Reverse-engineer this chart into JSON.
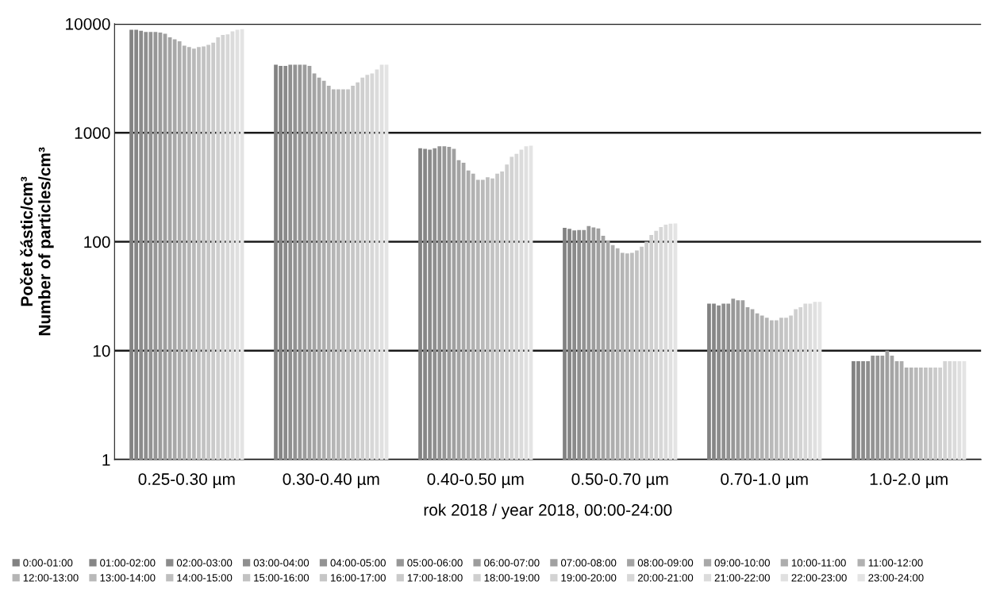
{
  "chart_data": {
    "type": "bar",
    "ylabel": "Počet částic/cm³\nNumber of particles/cm³",
    "xlabel": "rok 2018 / year 2018, 00:00-24:00",
    "categories": [
      "0.25-0.30 µm",
      "0.30-0.40 µm",
      "0.40-0.50 µm",
      "0.50-0.70 µm",
      "0.70-1.0 µm",
      "1.0-2.0 µm"
    ],
    "log": true,
    "ylim": [
      1,
      10000
    ],
    "yticks": [
      1,
      10,
      100,
      1000,
      10000
    ],
    "grid": "y",
    "legend": "bottom",
    "series": [
      {
        "name": "0:00-01:00",
        "color": "#828282",
        "values": [
          8800,
          4200,
          720,
          134,
          27,
          8
        ]
      },
      {
        "name": "01:00-02:00",
        "color": "#868686",
        "values": [
          8800,
          4100,
          710,
          131,
          27,
          8
        ]
      },
      {
        "name": "02:00-03:00",
        "color": "#8b8b8b",
        "values": [
          8600,
          4100,
          700,
          127,
          26,
          8
        ]
      },
      {
        "name": "03:00-04:00",
        "color": "#8f8f8f",
        "values": [
          8400,
          4200,
          720,
          128,
          27,
          8
        ]
      },
      {
        "name": "04:00-05:00",
        "color": "#939393",
        "values": [
          8400,
          4200,
          750,
          128,
          27,
          9
        ]
      },
      {
        "name": "05:00-06:00",
        "color": "#979797",
        "values": [
          8400,
          4200,
          750,
          139,
          30,
          9
        ]
      },
      {
        "name": "06:00-07:00",
        "color": "#9c9c9c",
        "values": [
          8300,
          4200,
          740,
          135,
          29,
          9
        ]
      },
      {
        "name": "07:00-08:00",
        "color": "#a0a0a0",
        "values": [
          8100,
          4100,
          710,
          132,
          29,
          10
        ]
      },
      {
        "name": "08:00-09:00",
        "color": "#a4a4a4",
        "values": [
          7500,
          3500,
          560,
          113,
          25,
          9
        ]
      },
      {
        "name": "09:00-10:00",
        "color": "#a8a8a8",
        "values": [
          7200,
          3200,
          530,
          103,
          24,
          8
        ]
      },
      {
        "name": "10:00-11:00",
        "color": "#adadad",
        "values": [
          6900,
          3000,
          450,
          93,
          22,
          8
        ]
      },
      {
        "name": "11:00-12:00",
        "color": "#b1b1b1",
        "values": [
          6300,
          2700,
          420,
          87,
          21,
          7
        ]
      },
      {
        "name": "12:00-13:00",
        "color": "#b5b5b5",
        "values": [
          6100,
          2500,
          370,
          79,
          20,
          7
        ]
      },
      {
        "name": "13:00-14:00",
        "color": "#b9b9b9",
        "values": [
          5900,
          2500,
          370,
          78,
          19,
          7
        ]
      },
      {
        "name": "14:00-15:00",
        "color": "#bebebe",
        "values": [
          6100,
          2500,
          390,
          79,
          19,
          7
        ]
      },
      {
        "name": "15:00-16:00",
        "color": "#c2c2c2",
        "values": [
          6200,
          2500,
          380,
          83,
          20,
          7
        ]
      },
      {
        "name": "16:00-17:00",
        "color": "#c6c6c6",
        "values": [
          6400,
          2700,
          420,
          90,
          20,
          7
        ]
      },
      {
        "name": "17:00-18:00",
        "color": "#cacaca",
        "values": [
          6700,
          2900,
          440,
          100,
          21,
          7
        ]
      },
      {
        "name": "18:00-19:00",
        "color": "#cfcfcf",
        "values": [
          7500,
          3200,
          510,
          115,
          24,
          7
        ]
      },
      {
        "name": "19:00-20:00",
        "color": "#d3d3d3",
        "values": [
          7900,
          3400,
          600,
          126,
          25,
          8
        ]
      },
      {
        "name": "20:00-21:00",
        "color": "#d7d7d7",
        "values": [
          8000,
          3500,
          640,
          136,
          27,
          8
        ]
      },
      {
        "name": "21:00-22:00",
        "color": "#dbdbdb",
        "values": [
          8500,
          3800,
          700,
          143,
          27,
          8
        ]
      },
      {
        "name": "22:00-23:00",
        "color": "#e0e0e0",
        "values": [
          8800,
          4200,
          750,
          146,
          28,
          8
        ]
      },
      {
        "name": "23:00-24:00",
        "color": "#e4e4e4",
        "values": [
          8900,
          4200,
          760,
          147,
          28,
          8
        ]
      }
    ]
  }
}
